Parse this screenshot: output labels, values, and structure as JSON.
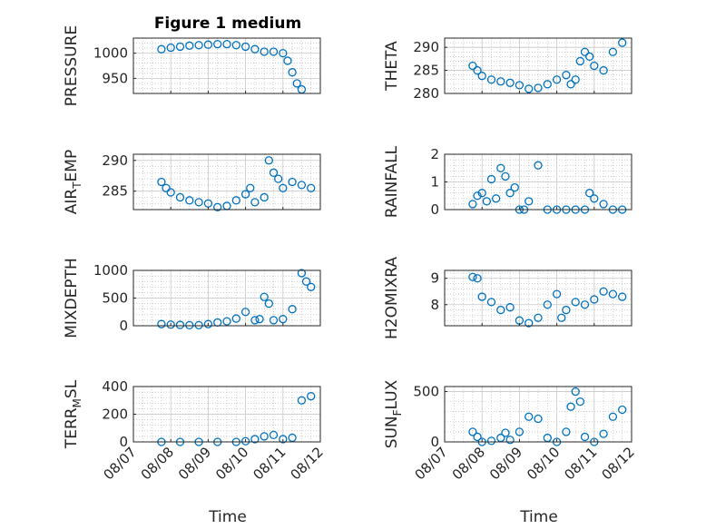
{
  "figure": {
    "title": "Figure 1 medium",
    "xlabel": "Time",
    "date_ticks": [
      "08/07",
      "08/08",
      "08/09",
      "08/10",
      "08/11",
      "08/12"
    ]
  },
  "style": {
    "marker_color": "#0072BD",
    "axis_color": "#262626",
    "grid_color": "#b0b0b0"
  },
  "chart_data": [
    {
      "type": "scatter",
      "ylabel": "PRESSURE",
      "ylim": [
        920,
        1030
      ],
      "yticks": [
        950,
        1000
      ],
      "x": [
        "08/07 18:00",
        "08/08 00:00",
        "08/08 06:00",
        "08/08 12:00",
        "08/08 18:00",
        "08/09 00:00",
        "08/09 06:00",
        "08/09 12:00",
        "08/09 18:00",
        "08/10 00:00",
        "08/10 06:00",
        "08/10 12:00",
        "08/10 18:00",
        "08/11 00:00",
        "08/11 03:00",
        "08/11 06:00",
        "08/11 09:00",
        "08/11 12:00"
      ],
      "y": [
        1008,
        1011,
        1013,
        1015,
        1016,
        1017,
        1018,
        1018,
        1016,
        1013,
        1008,
        1003,
        1003,
        1000,
        985,
        962,
        940,
        928
      ]
    },
    {
      "type": "scatter",
      "ylabel": "THETA",
      "ylim": [
        280,
        292
      ],
      "yticks": [
        280,
        285,
        290
      ],
      "x": [
        "08/07 18:00",
        "08/07 21:00",
        "08/08 00:00",
        "08/08 06:00",
        "08/08 12:00",
        "08/08 18:00",
        "08/09 00:00",
        "08/09 06:00",
        "08/09 12:00",
        "08/09 18:00",
        "08/10 00:00",
        "08/10 06:00",
        "08/10 09:00",
        "08/10 12:00",
        "08/10 15:00",
        "08/10 18:00",
        "08/10 21:00",
        "08/11 00:00",
        "08/11 06:00",
        "08/11 12:00",
        "08/11 18:00"
      ],
      "y": [
        286,
        285,
        283.8,
        283,
        282.6,
        282.3,
        281.8,
        281,
        281.2,
        282,
        283,
        284,
        282,
        283,
        287,
        289,
        288,
        286,
        285,
        289,
        291
      ]
    },
    {
      "type": "scatter",
      "ylabel": "AIR_TEMP",
      "ylim": [
        282,
        291
      ],
      "yticks": [
        285,
        290
      ],
      "x": [
        "08/07 18:00",
        "08/07 21:00",
        "08/08 00:00",
        "08/08 06:00",
        "08/08 12:00",
        "08/08 18:00",
        "08/09 00:00",
        "08/09 06:00",
        "08/09 12:00",
        "08/09 18:00",
        "08/10 00:00",
        "08/10 03:00",
        "08/10 06:00",
        "08/10 12:00",
        "08/10 15:00",
        "08/10 18:00",
        "08/10 21:00",
        "08/11 00:00",
        "08/11 06:00",
        "08/11 12:00",
        "08/11 18:00"
      ],
      "y": [
        286.5,
        285.5,
        284.8,
        284,
        283.5,
        283.2,
        283,
        282.4,
        282.6,
        283.5,
        284.5,
        285.5,
        283.2,
        284,
        290,
        288,
        287,
        285.5,
        286.5,
        286,
        285.5
      ]
    },
    {
      "type": "scatter",
      "ylabel": "RAINFALL",
      "ylim": [
        0,
        2
      ],
      "yticks": [
        0,
        1,
        2
      ],
      "x": [
        "08/07 18:00",
        "08/07 21:00",
        "08/08 00:00",
        "08/08 03:00",
        "08/08 06:00",
        "08/08 09:00",
        "08/08 12:00",
        "08/08 15:00",
        "08/08 18:00",
        "08/08 21:00",
        "08/09 00:00",
        "08/09 03:00",
        "08/09 06:00",
        "08/09 12:00",
        "08/09 18:00",
        "08/10 00:00",
        "08/10 06:00",
        "08/10 12:00",
        "08/10 18:00",
        "08/10 21:00",
        "08/11 00:00",
        "08/11 06:00",
        "08/11 12:00",
        "08/11 18:00"
      ],
      "y": [
        0.2,
        0.5,
        0.6,
        0.3,
        1.1,
        0.4,
        1.5,
        1.2,
        0.6,
        0.8,
        0,
        0,
        0.3,
        1.6,
        0,
        0,
        0,
        0,
        0,
        0.6,
        0.4,
        0.2,
        0,
        0
      ]
    },
    {
      "type": "scatter",
      "ylabel": "MIXDEPTH",
      "ylim": [
        0,
        1000
      ],
      "yticks": [
        0,
        500,
        1000
      ],
      "x": [
        "08/07 18:00",
        "08/08 00:00",
        "08/08 06:00",
        "08/08 12:00",
        "08/08 18:00",
        "08/09 00:00",
        "08/09 06:00",
        "08/09 12:00",
        "08/09 18:00",
        "08/10 00:00",
        "08/10 06:00",
        "08/10 09:00",
        "08/10 12:00",
        "08/10 15:00",
        "08/10 18:00",
        "08/11 00:00",
        "08/11 06:00",
        "08/11 12:00",
        "08/11 15:00",
        "08/11 18:00"
      ],
      "y": [
        30,
        20,
        15,
        10,
        10,
        30,
        60,
        80,
        130,
        250,
        100,
        120,
        520,
        400,
        100,
        120,
        300,
        950,
        800,
        700
      ]
    },
    {
      "type": "scatter",
      "ylabel": "H2OMIXRA",
      "ylim": [
        7.2,
        9.3
      ],
      "yticks": [
        8,
        9
      ],
      "x": [
        "08/07 18:00",
        "08/07 21:00",
        "08/08 00:00",
        "08/08 06:00",
        "08/08 12:00",
        "08/08 18:00",
        "08/09 00:00",
        "08/09 06:00",
        "08/09 12:00",
        "08/09 18:00",
        "08/10 00:00",
        "08/10 03:00",
        "08/10 06:00",
        "08/10 12:00",
        "08/10 18:00",
        "08/11 00:00",
        "08/11 06:00",
        "08/11 12:00",
        "08/11 18:00"
      ],
      "y": [
        9.05,
        9.0,
        8.3,
        8.1,
        7.8,
        7.9,
        7.4,
        7.3,
        7.5,
        8.0,
        8.4,
        7.5,
        7.8,
        8.1,
        8.0,
        8.2,
        8.5,
        8.4,
        8.3
      ]
    },
    {
      "type": "scatter",
      "ylabel": "TERR_MSL",
      "ylim": [
        0,
        400
      ],
      "yticks": [
        0,
        200,
        400
      ],
      "x": [
        "08/07 18:00",
        "08/08 06:00",
        "08/08 18:00",
        "08/09 06:00",
        "08/09 18:00",
        "08/10 00:00",
        "08/10 06:00",
        "08/10 12:00",
        "08/10 18:00",
        "08/11 00:00",
        "08/11 06:00",
        "08/11 12:00",
        "08/11 18:00"
      ],
      "y": [
        0,
        0,
        0,
        0,
        0,
        5,
        20,
        40,
        50,
        20,
        30,
        300,
        330
      ]
    },
    {
      "type": "scatter",
      "ylabel": "SUN_FLUX",
      "ylim": [
        0,
        550
      ],
      "yticks": [
        0,
        500
      ],
      "x": [
        "08/07 18:00",
        "08/07 21:00",
        "08/08 00:00",
        "08/08 06:00",
        "08/08 12:00",
        "08/08 15:00",
        "08/08 18:00",
        "08/09 00:00",
        "08/09 06:00",
        "08/09 12:00",
        "08/09 18:00",
        "08/10 00:00",
        "08/10 06:00",
        "08/10 09:00",
        "08/10 12:00",
        "08/10 15:00",
        "08/10 18:00",
        "08/11 00:00",
        "08/11 06:00",
        "08/11 12:00",
        "08/11 18:00"
      ],
      "y": [
        100,
        50,
        0,
        10,
        40,
        90,
        20,
        100,
        250,
        230,
        40,
        0,
        100,
        350,
        500,
        400,
        50,
        0,
        80,
        250,
        320
      ]
    }
  ]
}
